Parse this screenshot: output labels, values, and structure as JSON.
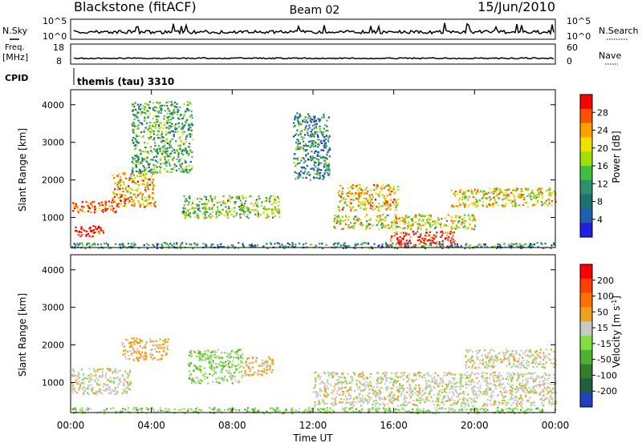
{
  "header": {
    "radar": "Blackstone (fitACF)",
    "beam": "Beam 02",
    "date": "15/Jun/2010"
  },
  "status": {
    "nsky_label": "N.Sky",
    "nsky_ticks": [
      "10^5",
      "10^0"
    ],
    "nsearch_label": "N.Search",
    "nsearch_ticks": [
      "10^5",
      "10^0"
    ],
    "freq_label_1": "Freq.",
    "freq_label_2": "[MHz]",
    "freq_ticks": [
      "18",
      "8"
    ],
    "nave_label": "Nave",
    "nave_ticks": [
      "60",
      "0"
    ],
    "cpid_label": "CPID",
    "cpid_value": "themis (tau) 3310"
  },
  "chart_data": [
    {
      "type": "heatmap",
      "panel": "power",
      "ylabel": "Slant Range [km]",
      "ylim": [
        200,
        4400
      ],
      "yticks": [
        1000,
        2000,
        3000,
        4000
      ],
      "xlim_hours": [
        0,
        24
      ],
      "colorbar": {
        "label": "Power [dB]",
        "ticks": [
          "28",
          "24",
          "20",
          "16",
          "12",
          "8",
          "4"
        ],
        "colors": [
          "#2020e0",
          "#205fb0",
          "#207070",
          "#2f9070",
          "#40c040",
          "#a0e000",
          "#f0e000",
          "#ffa000",
          "#ff5000",
          "#ff0000"
        ]
      },
      "scatter_regions_hours_km": [
        {
          "t": [
            0.0,
            2.3
          ],
          "r": [
            1150,
            1450
          ],
          "level": 0.85
        },
        {
          "t": [
            0.2,
            1.6
          ],
          "r": [
            500,
            800
          ],
          "level": 0.95
        },
        {
          "t": [
            2.0,
            4.2
          ],
          "r": [
            1300,
            2200
          ],
          "level": 0.7
        },
        {
          "t": [
            3.0,
            6.0
          ],
          "r": [
            2200,
            4100
          ],
          "level": 0.4
        },
        {
          "t": [
            5.5,
            10.3
          ],
          "r": [
            1000,
            1600
          ],
          "level": 0.5
        },
        {
          "t": [
            11.0,
            12.8
          ],
          "r": [
            2000,
            3800
          ],
          "level": 0.3
        },
        {
          "t": [
            13.2,
            16.2
          ],
          "r": [
            1200,
            1900
          ],
          "level": 0.7
        },
        {
          "t": [
            13.0,
            20.0
          ],
          "r": [
            700,
            1100
          ],
          "level": 0.6
        },
        {
          "t": [
            15.8,
            19.0
          ],
          "r": [
            250,
            650
          ],
          "level": 0.95
        },
        {
          "t": [
            18.8,
            24.0
          ],
          "r": [
            1300,
            1800
          ],
          "level": 0.65
        },
        {
          "t": [
            0.0,
            24.0
          ],
          "r": [
            200,
            350
          ],
          "level": 0.3
        }
      ]
    },
    {
      "type": "heatmap",
      "panel": "velocity",
      "ylabel": "Slant Range [km]",
      "xlabel": "Time UT",
      "ylim": [
        200,
        4400
      ],
      "yticks": [
        1000,
        2000,
        3000,
        4000
      ],
      "xticks": [
        "00:00",
        "04:00",
        "08:00",
        "12:00",
        "16:00",
        "20:00",
        "00:00"
      ],
      "colorbar": {
        "label": "Velocity [m s",
        "label_sup": "-1",
        "label_end": "]",
        "ticks": [
          "200",
          "100",
          "50",
          "15",
          "-15",
          "-50",
          "-100",
          "-200"
        ],
        "colors": [
          "#2040c0",
          "#206040",
          "#308030",
          "#50b030",
          "#80e040",
          "#c8c8c8",
          "#f0a020",
          "#ff7000",
          "#ff4000",
          "#ff0000"
        ]
      },
      "scatter_regions_hours_km": [
        {
          "t": [
            0.0,
            3.0
          ],
          "r": [
            700,
            1400
          ],
          "v": "ground"
        },
        {
          "t": [
            2.5,
            4.8
          ],
          "r": [
            1600,
            2200
          ],
          "v": "away-orange"
        },
        {
          "t": [
            5.8,
            8.5
          ],
          "r": [
            1000,
            1900
          ],
          "v": "toward-green"
        },
        {
          "t": [
            8.5,
            10.0
          ],
          "r": [
            1200,
            1700
          ],
          "v": "away-orange"
        },
        {
          "t": [
            12.0,
            24.0
          ],
          "r": [
            400,
            1300
          ],
          "v": "ground"
        },
        {
          "t": [
            19.5,
            24.0
          ],
          "r": [
            1400,
            1900
          ],
          "v": "ground"
        },
        {
          "t": [
            0.0,
            24.0
          ],
          "r": [
            200,
            350
          ],
          "v": "toward-green"
        }
      ]
    }
  ]
}
